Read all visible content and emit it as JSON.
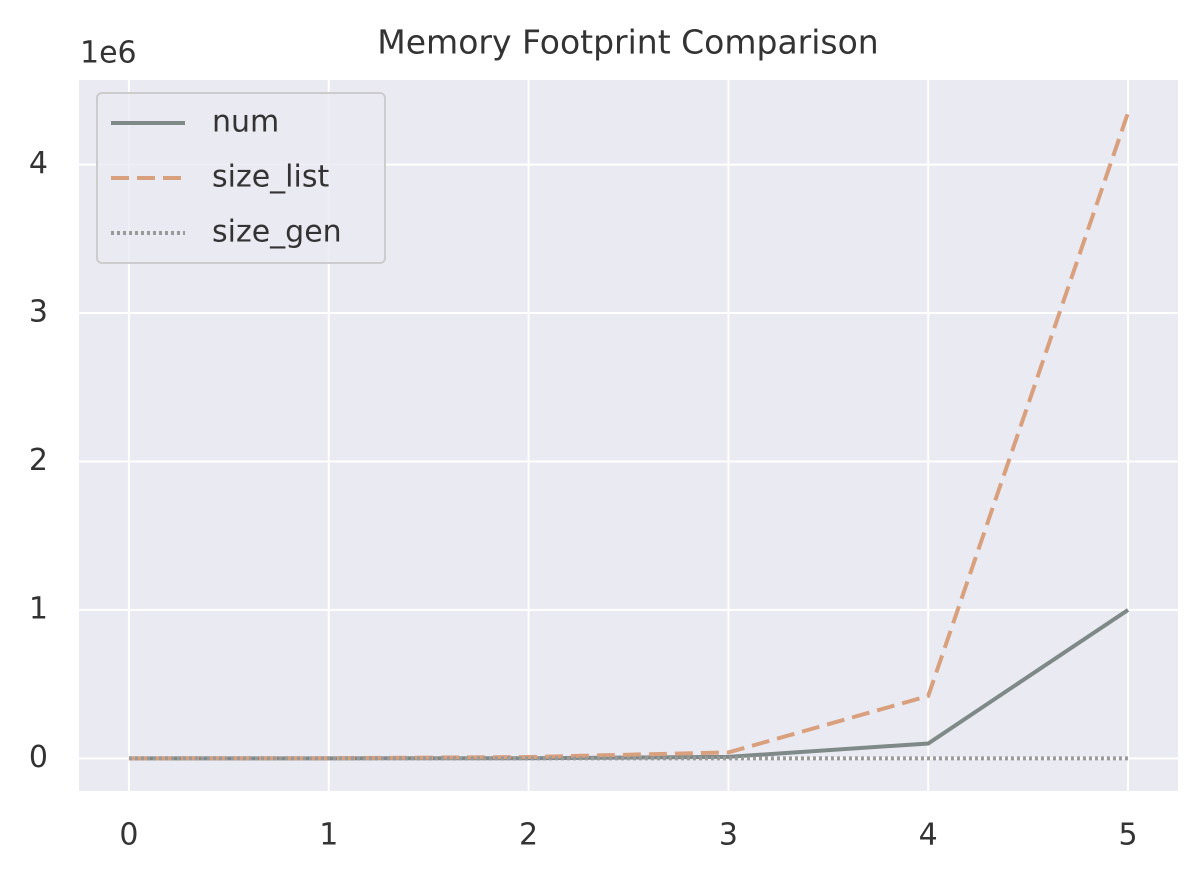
{
  "chart_data": {
    "type": "line",
    "title": "Memory Footprint Comparison",
    "y_offset_label": "1e6",
    "x": [
      0,
      1,
      2,
      3,
      4,
      5
    ],
    "series": [
      {
        "name": "num",
        "color": "#7f8a88",
        "dash": "solid",
        "values": [
          1e-05,
          0.0001,
          0.001,
          0.01,
          0.1,
          1
        ]
      },
      {
        "name": "size_list",
        "color": "#d9a07e",
        "dash": "dashed",
        "values": [
          0.0001,
          0.0009,
          0.009,
          0.04,
          0.42,
          4.35
        ]
      },
      {
        "name": "size_gen",
        "color": "#9a9a9a",
        "dash": "dotted",
        "values": [
          0.0001,
          0.0001,
          0.0001,
          0.0001,
          0.0001,
          0.0001
        ]
      }
    ],
    "xlim": [
      -0.25,
      5.25
    ],
    "xticks": [
      0,
      1,
      2,
      3,
      4,
      5
    ],
    "ylim": [
      -0.22,
      4.57
    ],
    "yticks": [
      0,
      1,
      2,
      3,
      4
    ],
    "grid": true,
    "legend": "upper left"
  }
}
